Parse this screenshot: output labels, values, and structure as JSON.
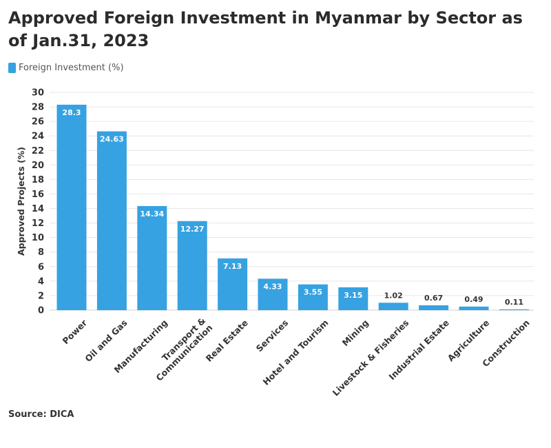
{
  "title": "Approved Foreign Investment in Myanmar by Sector as of Jan.31, 2023",
  "legend": {
    "label": "Foreign Investment (%)",
    "color": "#36a2e1"
  },
  "source": "Source: DICA",
  "chart_data": {
    "type": "bar",
    "title": "Approved Foreign Investment in Myanmar by Sector as of Jan.31, 2023",
    "xlabel": "",
    "ylabel": "Approved Projects (%)",
    "ylim": [
      0,
      30
    ],
    "yticks": [
      0,
      2,
      4,
      6,
      8,
      10,
      12,
      14,
      16,
      18,
      20,
      22,
      24,
      26,
      28,
      30
    ],
    "grid": true,
    "legend_position": "top-left",
    "categories": [
      "Power",
      "Oil and Gas",
      "Manufacturing",
      "Transport & Communication",
      "Real Estate",
      "Services",
      "Hotel and Tourism",
      "Mining",
      "Livestock & Fisheries",
      "Industrial Estate",
      "Agriculture",
      "Construction"
    ],
    "category_lines": [
      [
        "Power"
      ],
      [
        "Oil and Gas"
      ],
      [
        "Manufacturing"
      ],
      [
        "Transport &",
        "Communication"
      ],
      [
        "Real Estate"
      ],
      [
        "Services"
      ],
      [
        "Hotel and Tourism"
      ],
      [
        "Mining"
      ],
      [
        "Livestock & Fisheries"
      ],
      [
        "Industrial Estate"
      ],
      [
        "Agriculture"
      ],
      [
        "Construction"
      ]
    ],
    "series": [
      {
        "name": "Foreign Investment (%)",
        "color": "#36a2e1",
        "values": [
          28.3,
          24.63,
          14.34,
          12.27,
          7.13,
          4.33,
          3.55,
          3.15,
          1.02,
          0.67,
          0.49,
          0.11
        ]
      }
    ]
  }
}
